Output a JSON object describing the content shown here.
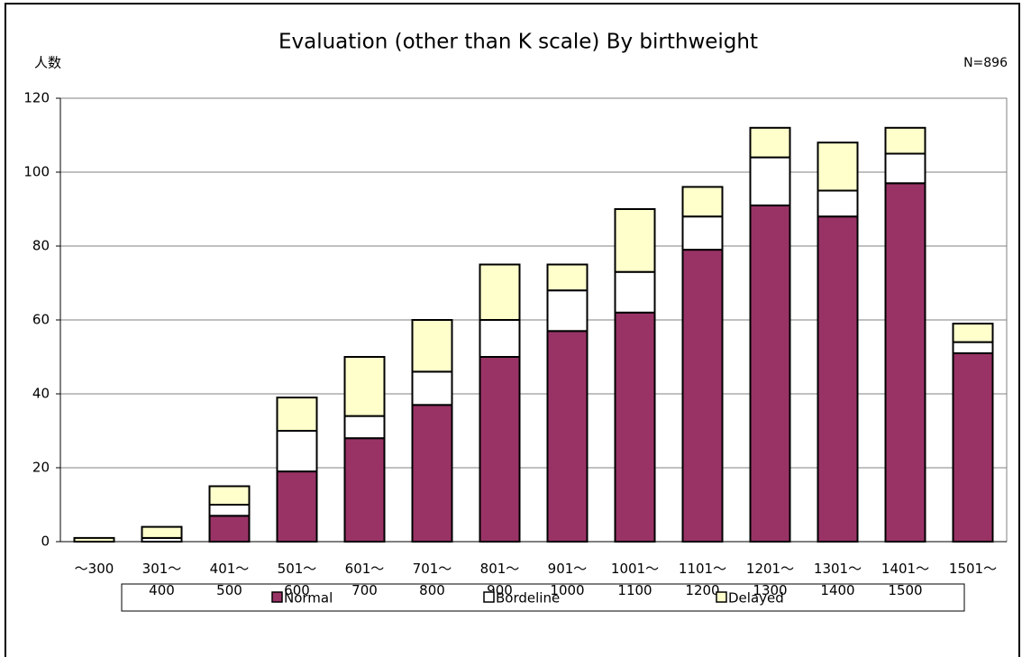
{
  "chart_data": {
    "type": "stacked_bar",
    "title": "Evaluation (other than K scale) By birthweight",
    "y_label": "人数",
    "annotation": "N=896",
    "categories": [
      [
        "～300"
      ],
      [
        "301～",
        "400"
      ],
      [
        "401～",
        "500"
      ],
      [
        "501～",
        "600"
      ],
      [
        "601～",
        "700"
      ],
      [
        "701～",
        "800"
      ],
      [
        "801～",
        "900"
      ],
      [
        "901～",
        "1000"
      ],
      [
        "1001～",
        "1100"
      ],
      [
        "1101～",
        "1200"
      ],
      [
        "1201～",
        "1300"
      ],
      [
        "1301～",
        "1400"
      ],
      [
        "1401～",
        "1500"
      ],
      [
        "1501～"
      ]
    ],
    "series": [
      {
        "name": "Normal",
        "color": "#993366",
        "values": [
          0,
          0,
          7,
          19,
          28,
          37,
          50,
          57,
          62,
          79,
          91,
          88,
          97,
          51
        ]
      },
      {
        "name": "Bordeline",
        "color": "#ffffff",
        "values": [
          0,
          1,
          3,
          11,
          6,
          9,
          10,
          11,
          11,
          9,
          13,
          7,
          8,
          3
        ]
      },
      {
        "name": "Delayed",
        "color": "#ffffcc",
        "values": [
          1,
          3,
          5,
          9,
          16,
          14,
          15,
          7,
          17,
          8,
          8,
          13,
          7,
          5
        ]
      }
    ],
    "ylim": [
      0,
      120
    ],
    "yticks": [
      0,
      20,
      40,
      60,
      80,
      100,
      120
    ],
    "grid": true,
    "legend": "bottom"
  }
}
